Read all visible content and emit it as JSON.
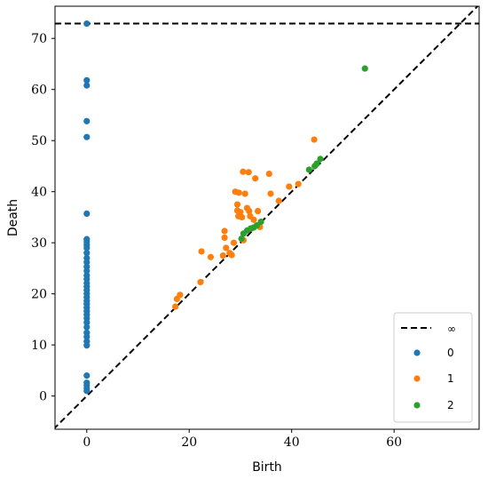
{
  "chart_data": {
    "type": "scatter",
    "title": "",
    "xlabel": "Birth",
    "ylabel": "Death",
    "xlim": [
      -6.2,
      76.6
    ],
    "ylim": [
      -6.5,
      76.3
    ],
    "xticks": [
      0,
      20,
      40,
      60
    ],
    "yticks": [
      0,
      10,
      20,
      30,
      40,
      50,
      60,
      70
    ],
    "infinity_level": 72.9,
    "diagonal": true,
    "legend_position": "bottom-right",
    "legend": [
      {
        "label": "∞",
        "kind": "dashed-line"
      },
      {
        "label": "0",
        "kind": "marker",
        "series": 0
      },
      {
        "label": "1",
        "kind": "marker",
        "series": 1
      },
      {
        "label": "2",
        "kind": "marker",
        "series": 2
      }
    ],
    "series": [
      {
        "id": "0",
        "color": "#1f77b4",
        "points": [
          [
            0,
            72.9
          ],
          [
            0,
            61.8
          ],
          [
            0,
            60.8
          ],
          [
            0,
            53.8
          ],
          [
            0,
            50.7
          ],
          [
            0,
            35.7
          ],
          [
            0,
            30.7
          ],
          [
            0,
            30.2
          ],
          [
            0,
            29.6
          ],
          [
            0,
            29.0
          ],
          [
            0,
            28.0
          ],
          [
            0,
            27.0
          ],
          [
            0,
            26.2
          ],
          [
            0,
            25.3
          ],
          [
            0,
            24.5
          ],
          [
            0,
            23.6
          ],
          [
            0,
            22.9
          ],
          [
            0,
            22.1
          ],
          [
            0,
            21.4
          ],
          [
            0,
            20.7
          ],
          [
            0,
            20.0
          ],
          [
            0,
            19.3
          ],
          [
            0,
            18.6
          ],
          [
            0,
            18.0
          ],
          [
            0,
            17.3
          ],
          [
            0,
            16.6
          ],
          [
            0,
            15.9
          ],
          [
            0,
            15.2
          ],
          [
            0,
            14.4
          ],
          [
            0,
            13.5
          ],
          [
            0,
            12.4
          ],
          [
            0,
            11.6
          ],
          [
            0,
            10.7
          ],
          [
            0,
            9.9
          ],
          [
            0,
            4.0
          ],
          [
            0,
            2.6
          ],
          [
            0,
            2.1
          ],
          [
            0,
            1.5
          ],
          [
            0,
            1.0
          ]
        ]
      },
      {
        "id": "1",
        "color": "#ff7f0e",
        "points": [
          [
            17.3,
            17.5
          ],
          [
            17.6,
            19.0
          ],
          [
            18.2,
            19.8
          ],
          [
            22.2,
            22.3
          ],
          [
            22.4,
            28.3
          ],
          [
            24.2,
            27.2
          ],
          [
            26.6,
            27.5
          ],
          [
            26.9,
            32.3
          ],
          [
            26.9,
            31.0
          ],
          [
            27.2,
            29.0
          ],
          [
            27.9,
            28.0
          ],
          [
            28.3,
            27.6
          ],
          [
            28.7,
            30.0
          ],
          [
            29.0,
            40.0
          ],
          [
            29.4,
            37.5
          ],
          [
            29.4,
            36.3
          ],
          [
            29.6,
            35.2
          ],
          [
            29.7,
            39.8
          ],
          [
            30.0,
            36.0
          ],
          [
            30.3,
            35.0
          ],
          [
            30.5,
            43.9
          ],
          [
            30.6,
            30.5
          ],
          [
            30.9,
            39.6
          ],
          [
            31.3,
            36.8
          ],
          [
            31.6,
            43.8
          ],
          [
            31.7,
            36.2
          ],
          [
            31.9,
            35.2
          ],
          [
            32.2,
            32.8
          ],
          [
            32.6,
            34.5
          ],
          [
            32.9,
            42.6
          ],
          [
            33.4,
            36.2
          ],
          [
            33.8,
            33.1
          ],
          [
            35.6,
            43.5
          ],
          [
            35.9,
            39.6
          ],
          [
            37.5,
            38.2
          ],
          [
            39.5,
            41.0
          ],
          [
            41.3,
            41.5
          ],
          [
            44.4,
            50.2
          ]
        ]
      },
      {
        "id": "2",
        "color": "#2ca02c",
        "points": [
          [
            30.2,
            30.8
          ],
          [
            30.6,
            31.8
          ],
          [
            31.3,
            32.4
          ],
          [
            32.0,
            32.8
          ],
          [
            32.6,
            33.0
          ],
          [
            33.2,
            33.4
          ],
          [
            34.0,
            34.1
          ],
          [
            43.4,
            44.3
          ],
          [
            44.5,
            45.0
          ],
          [
            44.9,
            45.5
          ],
          [
            45.6,
            46.4
          ],
          [
            54.3,
            64.1
          ]
        ]
      }
    ]
  }
}
